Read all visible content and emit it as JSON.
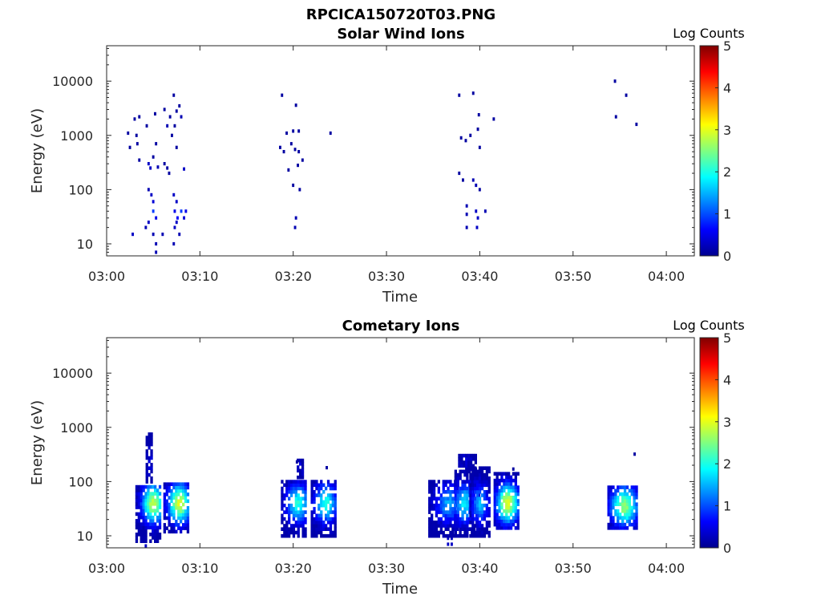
{
  "figure": {
    "title": "RPCICA150720T03.PNG"
  },
  "colormap": {
    "name": "jet",
    "colors": [
      "#00008f",
      "#0000ff",
      "#0080ff",
      "#00ffff",
      "#80ff80",
      "#ffff00",
      "#ff8000",
      "#ff0000",
      "#800000"
    ]
  },
  "chart_data": [
    {
      "type": "heatmap",
      "title": "Solar Wind Ions",
      "xlabel": "Time",
      "ylabel": "Energy (eV)",
      "y_scale": "log",
      "x_range": [
        "03:00",
        "04:03"
      ],
      "y_range": [
        6,
        45000
      ],
      "x_ticks": [
        "03:00",
        "03:10",
        "03:20",
        "03:30",
        "03:40",
        "03:50",
        "04:00"
      ],
      "y_ticks": [
        "10",
        "100",
        "1000",
        "10000"
      ],
      "colorbar": {
        "label": "Log Counts",
        "range": [
          0,
          5
        ],
        "ticks": [
          "0",
          "1",
          "2",
          "3",
          "4",
          "5"
        ]
      },
      "cells": [
        [
          "03:02.3",
          1100,
          0.1
        ],
        [
          "03:02.5",
          600,
          0.1
        ],
        [
          "03:03.0",
          2000,
          0.1
        ],
        [
          "03:03.5",
          2200,
          0.1
        ],
        [
          "03:04.3",
          1500,
          0.1
        ],
        [
          "03:03.2",
          1000,
          0.1
        ],
        [
          "03:03.3",
          700,
          0.1
        ],
        [
          "03:03.5",
          350,
          0.1
        ],
        [
          "03:04.5",
          300,
          0.3
        ],
        [
          "03:04.7",
          250,
          0.3
        ],
        [
          "03:05.0",
          400,
          0.1
        ],
        [
          "03:05.2",
          2500,
          0.1
        ],
        [
          "03:05.3",
          700,
          0.1
        ],
        [
          "03:05.5",
          260,
          0.2
        ],
        [
          "03:04.5",
          100,
          0.2
        ],
        [
          "03:04.8",
          80,
          0.3
        ],
        [
          "03:05.0",
          60,
          0.4
        ],
        [
          "03:05.0",
          40,
          0.9
        ],
        [
          "03:05.3",
          30,
          0.5
        ],
        [
          "03:04.5",
          25,
          0.3
        ],
        [
          "03:04.2",
          20,
          0.2
        ],
        [
          "03:05.0",
          15,
          0.2
        ],
        [
          "03:05.3",
          10,
          0.2
        ],
        [
          "03:05.3",
          7,
          0.2
        ],
        [
          "03:02.8",
          15,
          0.3
        ],
        [
          "03:06.0",
          15,
          0.2
        ],
        [
          "03:06.2",
          300,
          0.1
        ],
        [
          "03:06.5",
          250,
          0.1
        ],
        [
          "03:06.7",
          200,
          0.1
        ],
        [
          "03:06.2",
          3000,
          0.1
        ],
        [
          "03:06.5",
          1500,
          0.2
        ],
        [
          "03:06.8",
          2200,
          0.1
        ],
        [
          "03:07.0",
          1000,
          0.1
        ],
        [
          "03:07.3",
          1500,
          0.1
        ],
        [
          "03:07.5",
          600,
          0.1
        ],
        [
          "03:07.5",
          2800,
          0.1
        ],
        [
          "03:07.2",
          5500,
          0.1
        ],
        [
          "03:07.8",
          3500,
          0.1
        ],
        [
          "03:08.0",
          2200,
          0.2
        ],
        [
          "03:08.3",
          240,
          0.3
        ],
        [
          "03:07.2",
          80,
          0.3
        ],
        [
          "03:07.5",
          60,
          0.3
        ],
        [
          "03:07.3",
          40,
          0.5
        ],
        [
          "03:07.6",
          30,
          0.6
        ],
        [
          "03:08.0",
          40,
          0.9
        ],
        [
          "03:08.5",
          40,
          0.5
        ],
        [
          "03:08.3",
          30,
          0.4
        ],
        [
          "03:07.5",
          25,
          0.3
        ],
        [
          "03:07.3",
          20,
          0.3
        ],
        [
          "03:07.8",
          15,
          0.2
        ],
        [
          "03:07.2",
          10,
          0.2
        ],
        [
          "03:18.8",
          5500,
          0.1
        ],
        [
          "03:19.3",
          1100,
          0.1
        ],
        [
          "03:20.0",
          1200,
          0.1
        ],
        [
          "03:20.3",
          3600,
          0.1
        ],
        [
          "03:20.6",
          1200,
          0.1
        ],
        [
          "03:18.6",
          600,
          0.1
        ],
        [
          "03:19.0",
          500,
          0.1
        ],
        [
          "03:19.8",
          700,
          0.1
        ],
        [
          "03:20.2",
          550,
          0.1
        ],
        [
          "03:20.6",
          500,
          0.1
        ],
        [
          "03:21.0",
          350,
          0.1
        ],
        [
          "03:20.5",
          280,
          0.1
        ],
        [
          "03:19.5",
          230,
          0.1
        ],
        [
          "03:20.0",
          120,
          0.1
        ],
        [
          "03:20.7",
          100,
          0.1
        ],
        [
          "03:20.3",
          30,
          0.2
        ],
        [
          "03:20.2",
          20,
          0.2
        ],
        [
          "03:24.0",
          1100,
          0.1
        ],
        [
          "03:37.8",
          5500,
          0.1
        ],
        [
          "03:39.3",
          6000,
          0.1
        ],
        [
          "03:39.9",
          2400,
          0.1
        ],
        [
          "03:41.5",
          2000,
          0.1
        ],
        [
          "03:39.8",
          1300,
          0.1
        ],
        [
          "03:38.0",
          900,
          0.1
        ],
        [
          "03:38.5",
          800,
          0.1
        ],
        [
          "03:39.0",
          1000,
          0.1
        ],
        [
          "03:40.0",
          600,
          0.1
        ],
        [
          "03:37.8",
          200,
          0.1
        ],
        [
          "03:38.2",
          150,
          0.1
        ],
        [
          "03:39.3",
          150,
          0.2
        ],
        [
          "03:39.6",
          120,
          0.2
        ],
        [
          "03:40.0",
          100,
          0.1
        ],
        [
          "03:38.6",
          50,
          0.2
        ],
        [
          "03:38.6",
          35,
          0.2
        ],
        [
          "03:39.6",
          40,
          0.3
        ],
        [
          "03:39.8",
          30,
          0.3
        ],
        [
          "03:39.7",
          20,
          0.3
        ],
        [
          "03:38.6",
          20,
          0.2
        ],
        [
          "03:40.6",
          40,
          0.2
        ],
        [
          "03:54.5",
          10000,
          0.1
        ],
        [
          "03:55.7",
          5500,
          0.1
        ],
        [
          "03:56.8",
          1600,
          0.1
        ],
        [
          "03:54.6",
          2200,
          0.1
        ]
      ]
    },
    {
      "type": "heatmap",
      "title": "Cometary Ions",
      "xlabel": "Time",
      "ylabel": "Energy (eV)",
      "y_scale": "log",
      "x_range": [
        "03:00",
        "04:03"
      ],
      "y_range": [
        6,
        45000
      ],
      "x_ticks": [
        "03:00",
        "03:10",
        "03:20",
        "03:30",
        "03:40",
        "03:50",
        "04:00"
      ],
      "y_ticks": [
        "10",
        "100",
        "1000",
        "10000"
      ],
      "colorbar": {
        "label": "Log Counts",
        "range": [
          0,
          5
        ],
        "ticks": [
          "0",
          "1",
          "2",
          "3",
          "4",
          "5"
        ]
      },
      "blobs": [
        {
          "t_start": "03:03.2",
          "t_end": "03:05.8",
          "e_low": 8,
          "e_high": 90,
          "peak": 2.8,
          "peak_t": "03:05.0",
          "peak_e": 40
        },
        {
          "t_start": "03:04.3",
          "t_end": "03:05.0",
          "e_low": 100,
          "e_high": 800,
          "peak": 0.4,
          "peak_t": "03:04.6",
          "peak_e": 250
        },
        {
          "t_start": "03:06.2",
          "t_end": "03:08.8",
          "e_low": 12,
          "e_high": 95,
          "peak": 2.9,
          "peak_t": "03:07.8",
          "peak_e": 40
        },
        {
          "t_start": "03:18.8",
          "t_end": "03:21.5",
          "e_low": 10,
          "e_high": 110,
          "peak": 2.0,
          "peak_t": "03:20.5",
          "peak_e": 40
        },
        {
          "t_start": "03:20.5",
          "t_end": "03:21.0",
          "e_low": 120,
          "e_high": 260,
          "peak": 0.3,
          "peak_t": "03:20.8",
          "peak_e": 200
        },
        {
          "t_start": "03:22.0",
          "t_end": "03:24.6",
          "e_low": 10,
          "e_high": 100,
          "peak": 2.0,
          "peak_t": "03:23.5",
          "peak_e": 40
        },
        {
          "t_start": "03:34.6",
          "t_end": "03:37.6",
          "e_low": 10,
          "e_high": 110,
          "peak": 1.4,
          "peak_t": "03:36.6",
          "peak_e": 40
        },
        {
          "t_start": "03:37.4",
          "t_end": "03:40.0",
          "e_low": 10,
          "e_high": 160,
          "peak": 1.8,
          "peak_t": "03:38.4",
          "peak_e": 40
        },
        {
          "t_start": "03:37.8",
          "t_end": "03:39.6",
          "e_low": 170,
          "e_high": 330,
          "peak": 0.3,
          "peak_t": "03:38.6",
          "peak_e": 250
        },
        {
          "t_start": "03:39.0",
          "t_end": "03:41.0",
          "e_low": 10,
          "e_high": 180,
          "peak": 1.5,
          "peak_t": "03:40.0",
          "peak_e": 40
        },
        {
          "t_start": "03:41.6",
          "t_end": "03:44.2",
          "e_low": 14,
          "e_high": 140,
          "peak": 3.0,
          "peak_t": "03:43.0",
          "peak_e": 40
        },
        {
          "t_start": "03:53.8",
          "t_end": "03:57.0",
          "e_low": 14,
          "e_high": 90,
          "peak": 2.6,
          "peak_t": "03:55.5",
          "peak_e": 35
        }
      ],
      "cells": [
        [
          "03:36.6",
          7,
          0.3
        ],
        [
          "03:36.6",
          9,
          0.3
        ],
        [
          "03:37.0",
          7,
          0.3
        ],
        [
          "03:37.0",
          9,
          0.3
        ],
        [
          "03:04.2",
          6.5,
          0.3
        ],
        [
          "03:56.6",
          320,
          0.1
        ],
        [
          "03:43.6",
          170,
          0.1
        ],
        [
          "03:23.6",
          180,
          0.1
        ],
        [
          "03:20.4",
          230,
          0.1
        ]
      ]
    }
  ]
}
